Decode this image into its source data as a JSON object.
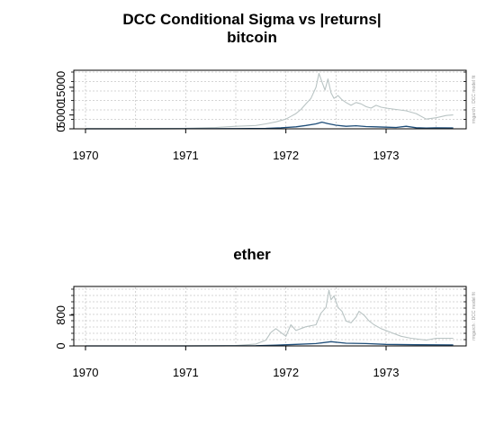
{
  "title": "DCC Conditional Sigma vs |returns|",
  "side_note": "rmgarch : DCC model fit",
  "colors": {
    "abs_returns": "#b9c4c4",
    "sigma": "#1f4e79",
    "grid": "#c8c8c8",
    "axis": "#000000"
  },
  "chart_data": [
    {
      "type": "line",
      "title": "bitcoin",
      "xlabel": "",
      "ylabel": "",
      "xlim": [
        1970.0,
        1973.78
      ],
      "ylim": [
        -500,
        20500
      ],
      "x_ticks": [
        "1970",
        "1971",
        "1972",
        "1973"
      ],
      "x_tick_values": [
        1970,
        1971,
        1972,
        1973
      ],
      "y_ticks": [
        "0",
        "5000",
        "15000"
      ],
      "y_tick_values": [
        0,
        5000,
        15000
      ],
      "grid": true,
      "series": [
        {
          "color": "#b9c4c4",
          "x": [
            1970.0,
            1970.5,
            1971.0,
            1971.3,
            1971.5,
            1971.7,
            1971.8,
            1971.9,
            1972.0,
            1972.05,
            1972.1,
            1972.15,
            1972.2,
            1972.25,
            1972.3,
            1972.33,
            1972.36,
            1972.39,
            1972.42,
            1972.45,
            1972.48,
            1972.52,
            1972.56,
            1972.6,
            1972.65,
            1972.7,
            1972.75,
            1972.8,
            1972.85,
            1972.9,
            1972.95,
            1973.0,
            1973.1,
            1973.2,
            1973.3,
            1973.4,
            1973.5,
            1973.6,
            1973.67
          ],
          "values": [
            100,
            120,
            200,
            500,
            900,
            1200,
            1800,
            2500,
            3500,
            4500,
            5500,
            7000,
            9000,
            11000,
            15000,
            20000,
            17000,
            14000,
            18000,
            13000,
            11000,
            12000,
            10500,
            9500,
            8500,
            9500,
            9000,
            8000,
            7500,
            8500,
            7800,
            7500,
            7000,
            6500,
            5500,
            3500,
            4000,
            4800,
            5000
          ]
        },
        {
          "color": "#1f4e79",
          "x": [
            1970.0,
            1970.5,
            1971.0,
            1971.5,
            1971.8,
            1971.95,
            1972.1,
            1972.2,
            1972.3,
            1972.36,
            1972.42,
            1972.5,
            1972.6,
            1972.7,
            1972.8,
            1972.9,
            1973.0,
            1973.1,
            1973.2,
            1973.3,
            1973.4,
            1973.5,
            1973.67
          ],
          "values": [
            10,
            12,
            30,
            80,
            150,
            350,
            700,
            1200,
            1800,
            2400,
            1900,
            1300,
            900,
            1100,
            800,
            700,
            600,
            500,
            900,
            400,
            300,
            350,
            320
          ]
        }
      ]
    },
    {
      "type": "line",
      "title": "ether",
      "xlabel": "",
      "ylabel": "",
      "xlim": [
        1970.0,
        1973.78
      ],
      "ylim": [
        -40,
        1500
      ],
      "x_ticks": [
        "1970",
        "1971",
        "1972",
        "1973"
      ],
      "x_tick_values": [
        1970,
        1971,
        1972,
        1973
      ],
      "y_ticks": [
        "0",
        "800"
      ],
      "y_tick_values": [
        0,
        800
      ],
      "grid": true,
      "series": [
        {
          "color": "#b9c4c4",
          "x": [
            1970.0,
            1970.5,
            1971.0,
            1971.5,
            1971.7,
            1971.8,
            1971.85,
            1971.9,
            1972.0,
            1972.05,
            1972.1,
            1972.2,
            1972.3,
            1972.35,
            1972.4,
            1972.43,
            1972.45,
            1972.48,
            1972.52,
            1972.56,
            1972.6,
            1972.65,
            1972.7,
            1972.73,
            1972.78,
            1972.83,
            1972.88,
            1972.95,
            1973.05,
            1973.15,
            1973.25,
            1973.4,
            1973.5,
            1973.67
          ],
          "values": [
            0,
            0,
            2,
            10,
            50,
            150,
            350,
            450,
            250,
            550,
            400,
            500,
            550,
            850,
            1000,
            1450,
            1200,
            1300,
            1000,
            900,
            650,
            600,
            750,
            900,
            800,
            650,
            550,
            450,
            350,
            250,
            200,
            150,
            200,
            200
          ]
        },
        {
          "color": "#1f4e79",
          "x": [
            1970.0,
            1971.0,
            1971.7,
            1971.9,
            1972.1,
            1972.3,
            1972.45,
            1972.6,
            1972.8,
            1973.0,
            1973.3,
            1973.67
          ],
          "values": [
            0,
            0,
            5,
            20,
            40,
            60,
            110,
            70,
            60,
            40,
            30,
            25
          ]
        }
      ]
    }
  ]
}
